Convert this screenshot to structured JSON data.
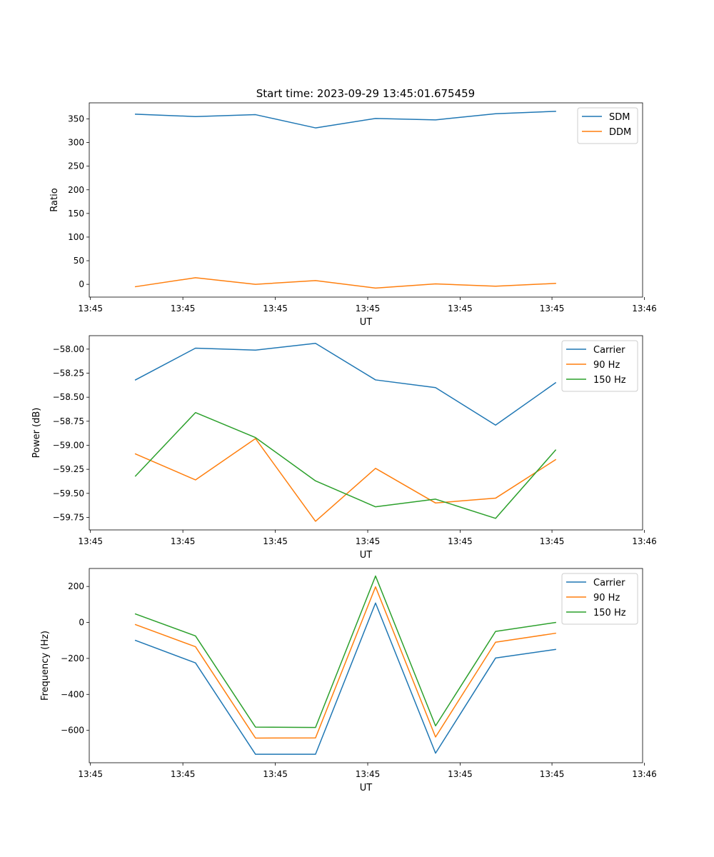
{
  "figure_title": "Start time: 2023-09-29 13:45:01.675459",
  "colors": {
    "blue": "#1f77b4",
    "orange": "#ff7f0e",
    "green": "#2ca02c"
  },
  "chart_data": [
    {
      "type": "line",
      "title": "Start time: 2023-09-29 13:45:01.675459",
      "xlabel": "UT",
      "ylabel": "Ratio",
      "xlim": [
        -0.77,
        8.45
      ],
      "ylim": [
        -27,
        384
      ],
      "x": [
        0,
        1,
        2,
        3,
        4,
        5,
        6,
        7
      ],
      "xticks": [
        -0.75,
        0.79,
        2.33,
        3.87,
        5.41,
        6.94,
        8.48
      ],
      "xticklabels": [
        "13:45",
        "13:45",
        "13:45",
        "13:45",
        "13:45",
        "13:45",
        "13:46"
      ],
      "yticks": [
        0,
        50,
        100,
        150,
        200,
        250,
        300,
        350
      ],
      "yticklabels": [
        "0",
        "50",
        "100",
        "150",
        "200",
        "250",
        "300",
        "350"
      ],
      "legend": "top-right",
      "series": [
        {
          "name": "SDM",
          "color": "#1f77b4",
          "values": [
            360,
            355,
            359,
            331,
            351,
            348,
            361,
            366
          ]
        },
        {
          "name": "DDM",
          "color": "#ff7f0e",
          "values": [
            -5,
            14,
            0,
            8,
            -8,
            1,
            -4,
            2
          ]
        }
      ]
    },
    {
      "type": "line",
      "xlabel": "UT",
      "ylabel": "Power (dB)",
      "xlim": [
        -0.77,
        8.45
      ],
      "ylim": [
        -59.88,
        -57.86
      ],
      "x": [
        0,
        1,
        2,
        3,
        4,
        5,
        6,
        7
      ],
      "xticks": [
        -0.75,
        0.79,
        2.33,
        3.87,
        5.41,
        6.94,
        8.48
      ],
      "xticklabels": [
        "13:45",
        "13:45",
        "13:45",
        "13:45",
        "13:45",
        "13:45",
        "13:46"
      ],
      "yticks": [
        -59.75,
        -59.5,
        -59.25,
        -59.0,
        -58.75,
        -58.5,
        -58.25,
        -58.0
      ],
      "yticklabels": [
        "−59.75",
        "−59.50",
        "−59.25",
        "−59.00",
        "−58.75",
        "−58.50",
        "−58.25",
        "−58.00"
      ],
      "legend": "top-right",
      "series": [
        {
          "name": "Carrier",
          "color": "#1f77b4",
          "values": [
            -58.32,
            -57.99,
            -58.01,
            -57.94,
            -58.32,
            -58.4,
            -58.79,
            -58.35
          ]
        },
        {
          "name": "90 Hz",
          "color": "#ff7f0e",
          "values": [
            -59.09,
            -59.36,
            -58.93,
            -59.79,
            -59.24,
            -59.6,
            -59.55,
            -59.15
          ]
        },
        {
          "name": "150 Hz",
          "color": "#2ca02c",
          "values": [
            -59.32,
            -58.66,
            -58.92,
            -59.37,
            -59.64,
            -59.56,
            -59.76,
            -59.05
          ]
        }
      ]
    },
    {
      "type": "line",
      "xlabel": "UT",
      "ylabel": "Frequency (Hz)",
      "xlim": [
        -0.77,
        8.45
      ],
      "ylim": [
        -780,
        300
      ],
      "x": [
        0,
        1,
        2,
        3,
        4,
        5,
        6,
        7
      ],
      "xticks": [
        -0.75,
        0.79,
        2.33,
        3.87,
        5.41,
        6.94,
        8.48
      ],
      "xticklabels": [
        "13:45",
        "13:45",
        "13:45",
        "13:45",
        "13:45",
        "13:45",
        "13:46"
      ],
      "yticks": [
        -600,
        -400,
        -200,
        0,
        200
      ],
      "yticklabels": [
        "−600",
        "−400",
        "−200",
        "0",
        "200"
      ],
      "legend": "top-right",
      "series": [
        {
          "name": "Carrier",
          "color": "#1f77b4",
          "values": [
            -100,
            -225,
            -733,
            -733,
            108,
            -727,
            -198,
            -150
          ]
        },
        {
          "name": "90 Hz",
          "color": "#ff7f0e",
          "values": [
            -12,
            -135,
            -643,
            -642,
            198,
            -637,
            -110,
            -60
          ]
        },
        {
          "name": "150 Hz",
          "color": "#2ca02c",
          "values": [
            47,
            -75,
            -582,
            -584,
            258,
            -575,
            -50,
            0
          ]
        }
      ]
    }
  ]
}
